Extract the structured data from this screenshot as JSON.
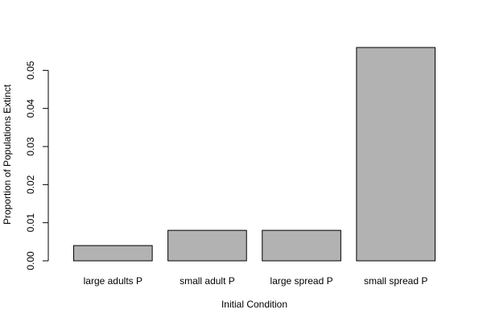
{
  "chart_data": {
    "type": "bar",
    "title": "",
    "xlabel": "Initial Condition",
    "ylabel": "Proportion of Populations Extinct",
    "categories": [
      "large adults P",
      "small adult P",
      "large spread P",
      "small spread P"
    ],
    "values": [
      0.004,
      0.008,
      0.008,
      0.056
    ],
    "ylim": [
      0,
      0.056
    ],
    "yticks": [
      0.0,
      0.01,
      0.02,
      0.03,
      0.04,
      0.05
    ],
    "ytick_labels": [
      "0.00",
      "0.01",
      "0.02",
      "0.03",
      "0.04",
      "0.05"
    ],
    "grid": false,
    "legend": "none",
    "bar_fill": "#b2b2b2",
    "bar_stroke": "#000000"
  }
}
